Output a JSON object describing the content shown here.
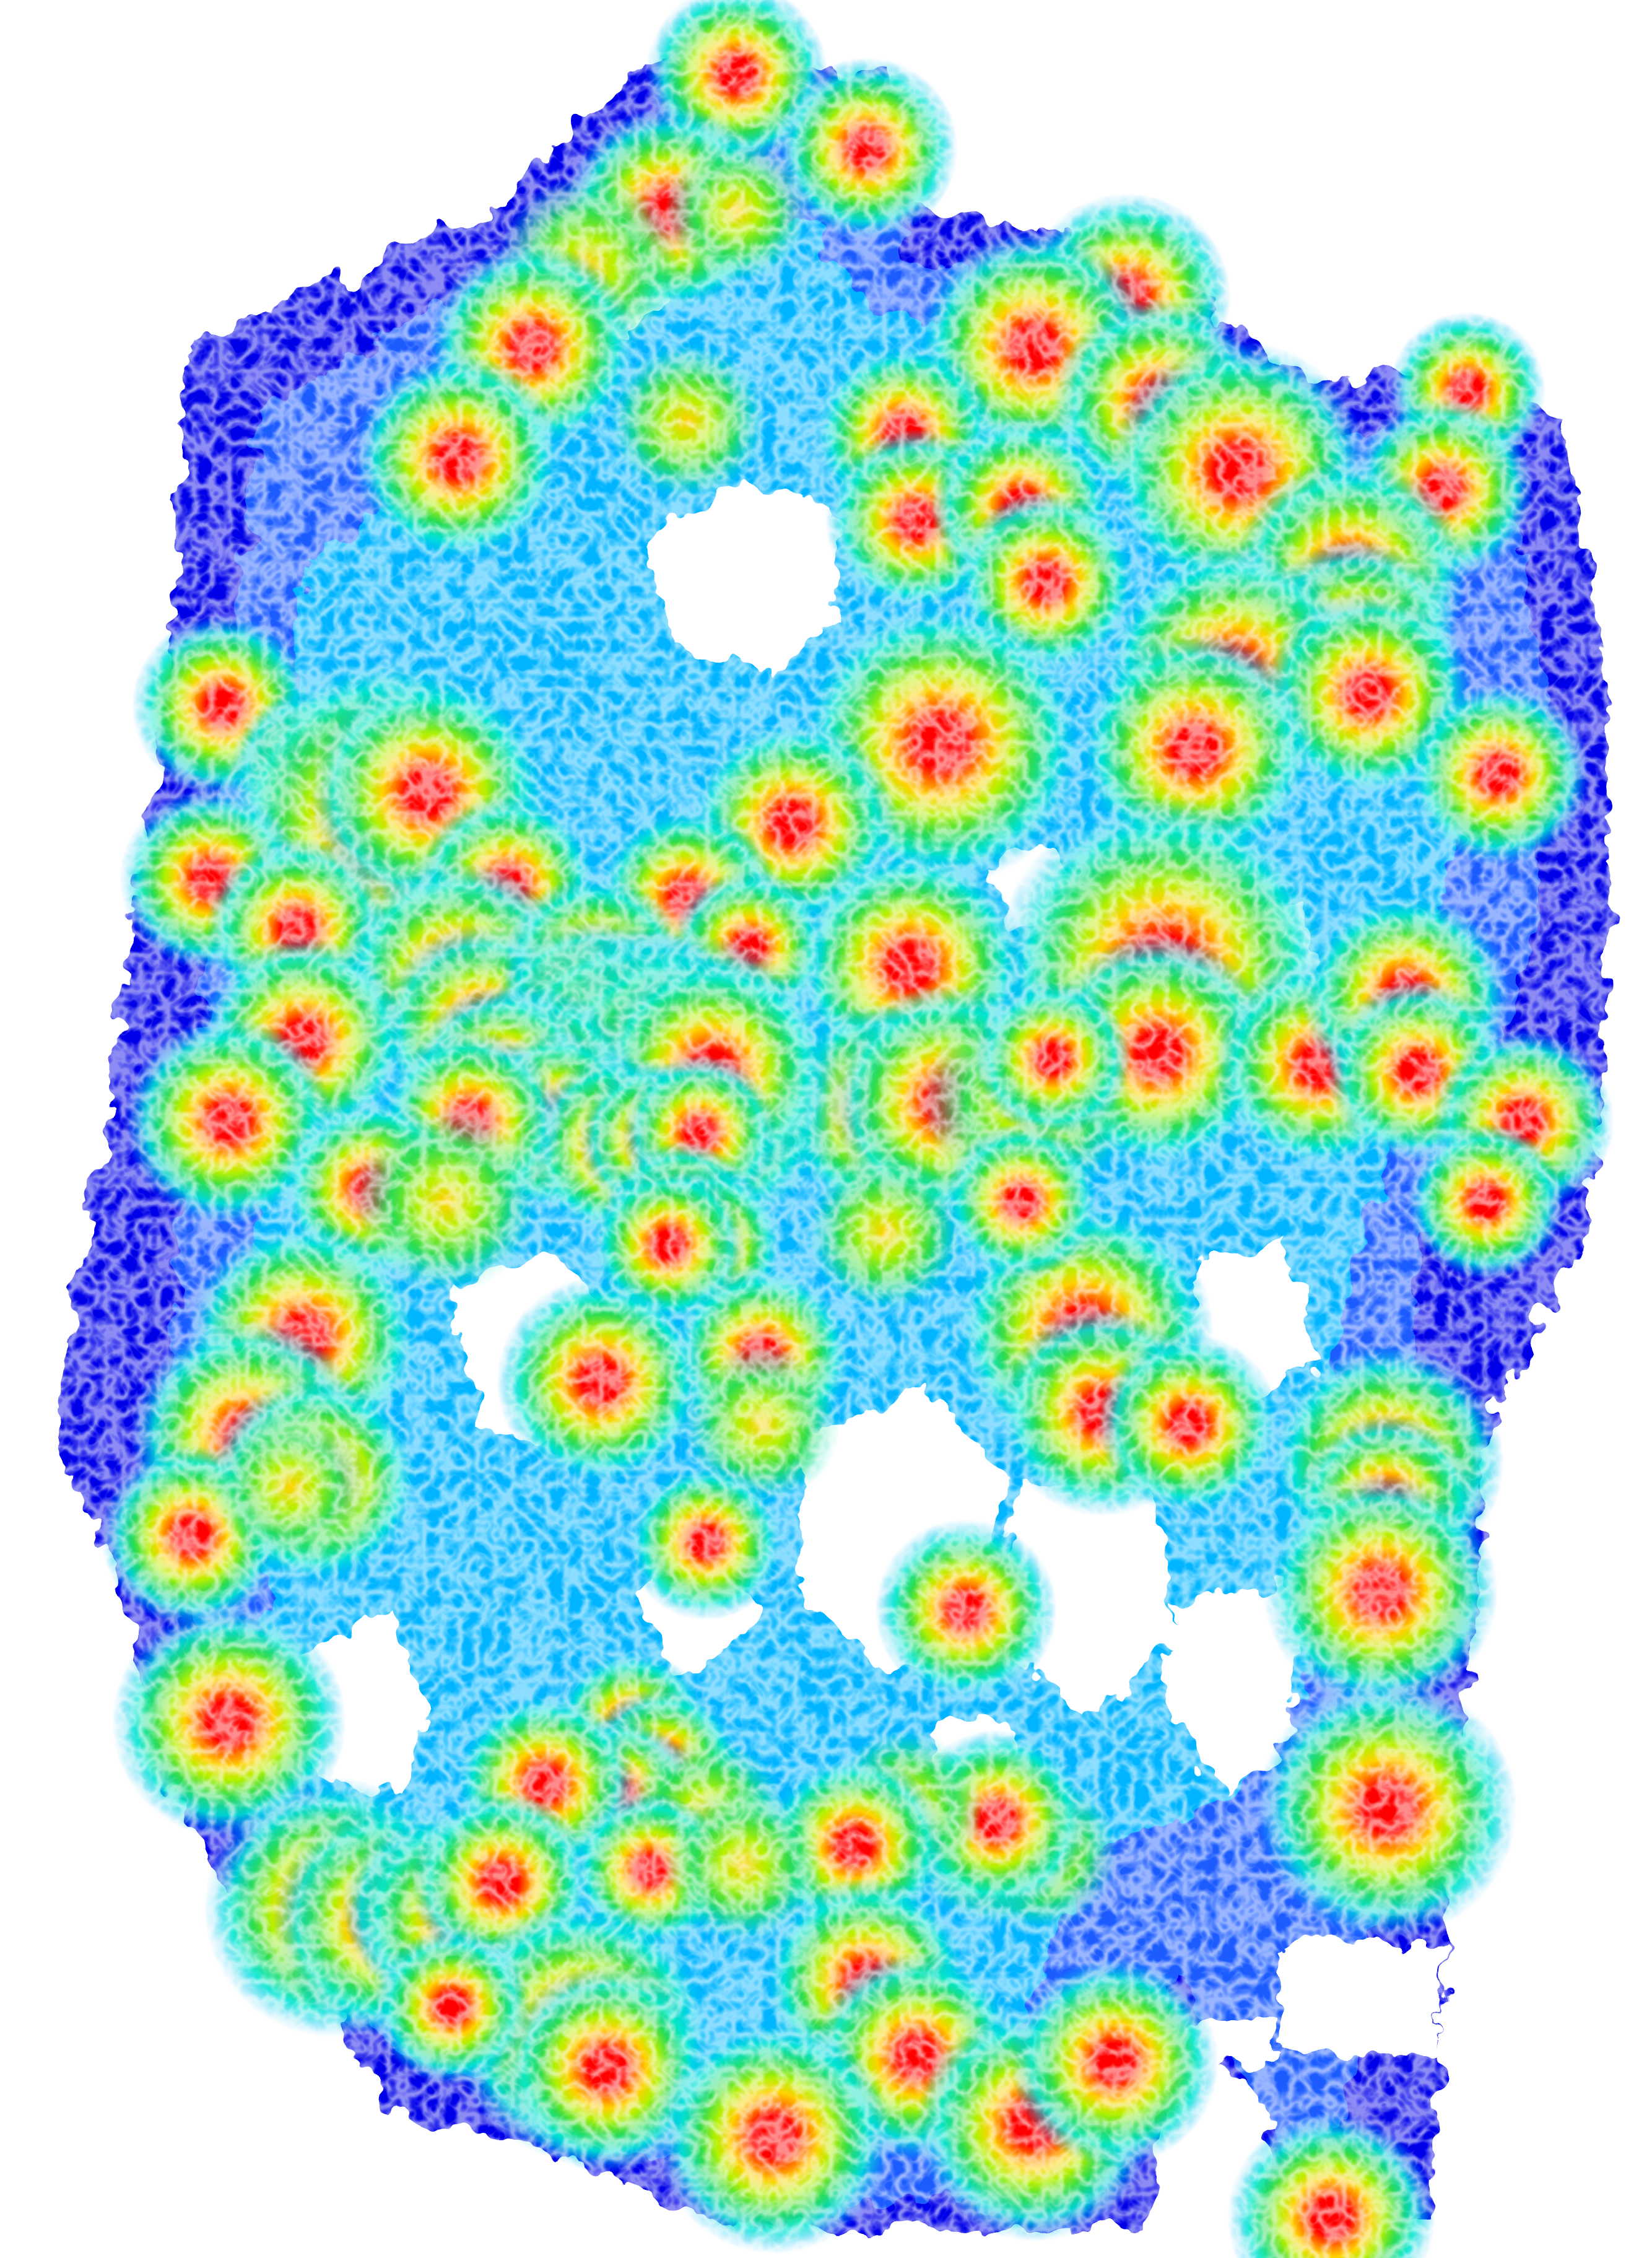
{
  "map": {
    "type": "coverage-heatmap",
    "background": "#ffffff",
    "palette": {
      "level_0": "#0000e8",
      "level_1": "#1f5cff",
      "level_2": "#00b4ff",
      "level_3": "#00e6d2",
      "level_4": "#2ddc50",
      "level_5": "#b4f000",
      "level_6": "#ffd200",
      "level_7": "#ff7800",
      "level_8": "#ff0000"
    },
    "legend_visible": false,
    "title_visible": false
  }
}
